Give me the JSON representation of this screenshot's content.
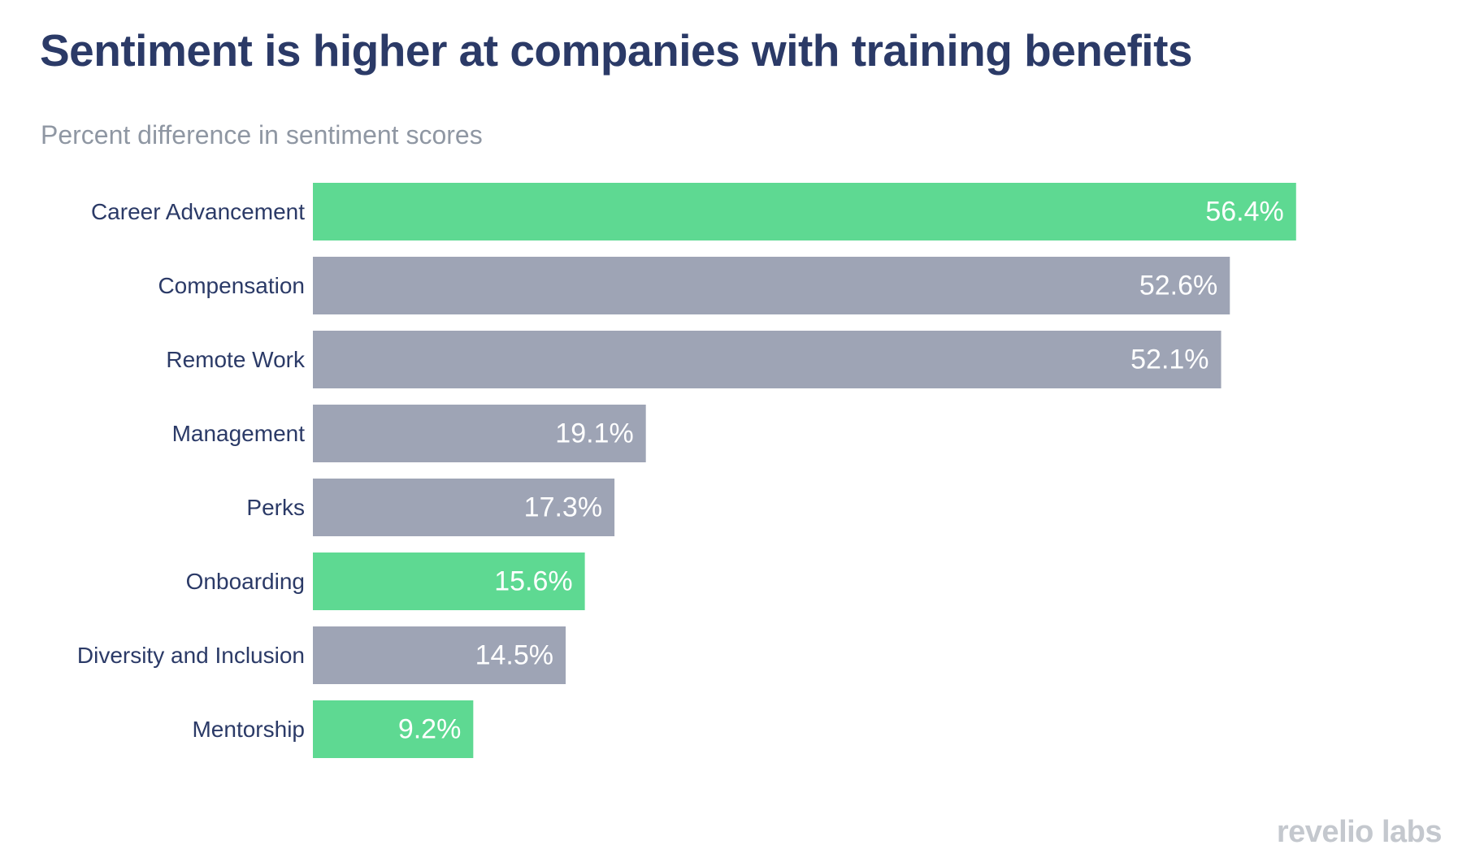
{
  "header": {
    "title": "Sentiment is higher at companies with training benefits",
    "subtitle": "Percent difference in sentiment scores"
  },
  "logo": {
    "text": "revelio labs"
  },
  "colors": {
    "highlight": "#5ed992",
    "default": "#9ea4b5",
    "label": "#2b3a67",
    "value_text": "#ffffff"
  },
  "chart_data": {
    "type": "bar",
    "orientation": "horizontal",
    "title": "Sentiment is higher at companies with training benefits",
    "subtitle": "Percent difference in sentiment scores",
    "xlabel": "",
    "ylabel": "",
    "xlim": [
      0,
      60
    ],
    "grid": false,
    "categories": [
      "Career Advancement",
      "Compensation",
      "Remote Work",
      "Management",
      "Perks",
      "Onboarding",
      "Diversity and Inclusion",
      "Mentorship"
    ],
    "values": [
      56.4,
      52.6,
      52.1,
      19.1,
      17.3,
      15.6,
      14.5,
      9.2
    ],
    "value_labels": [
      "56.4%",
      "52.6%",
      "52.1%",
      "19.1%",
      "17.3%",
      "15.6%",
      "14.5%",
      "9.2%"
    ],
    "highlighted": [
      true,
      false,
      false,
      false,
      false,
      true,
      false,
      true
    ]
  }
}
